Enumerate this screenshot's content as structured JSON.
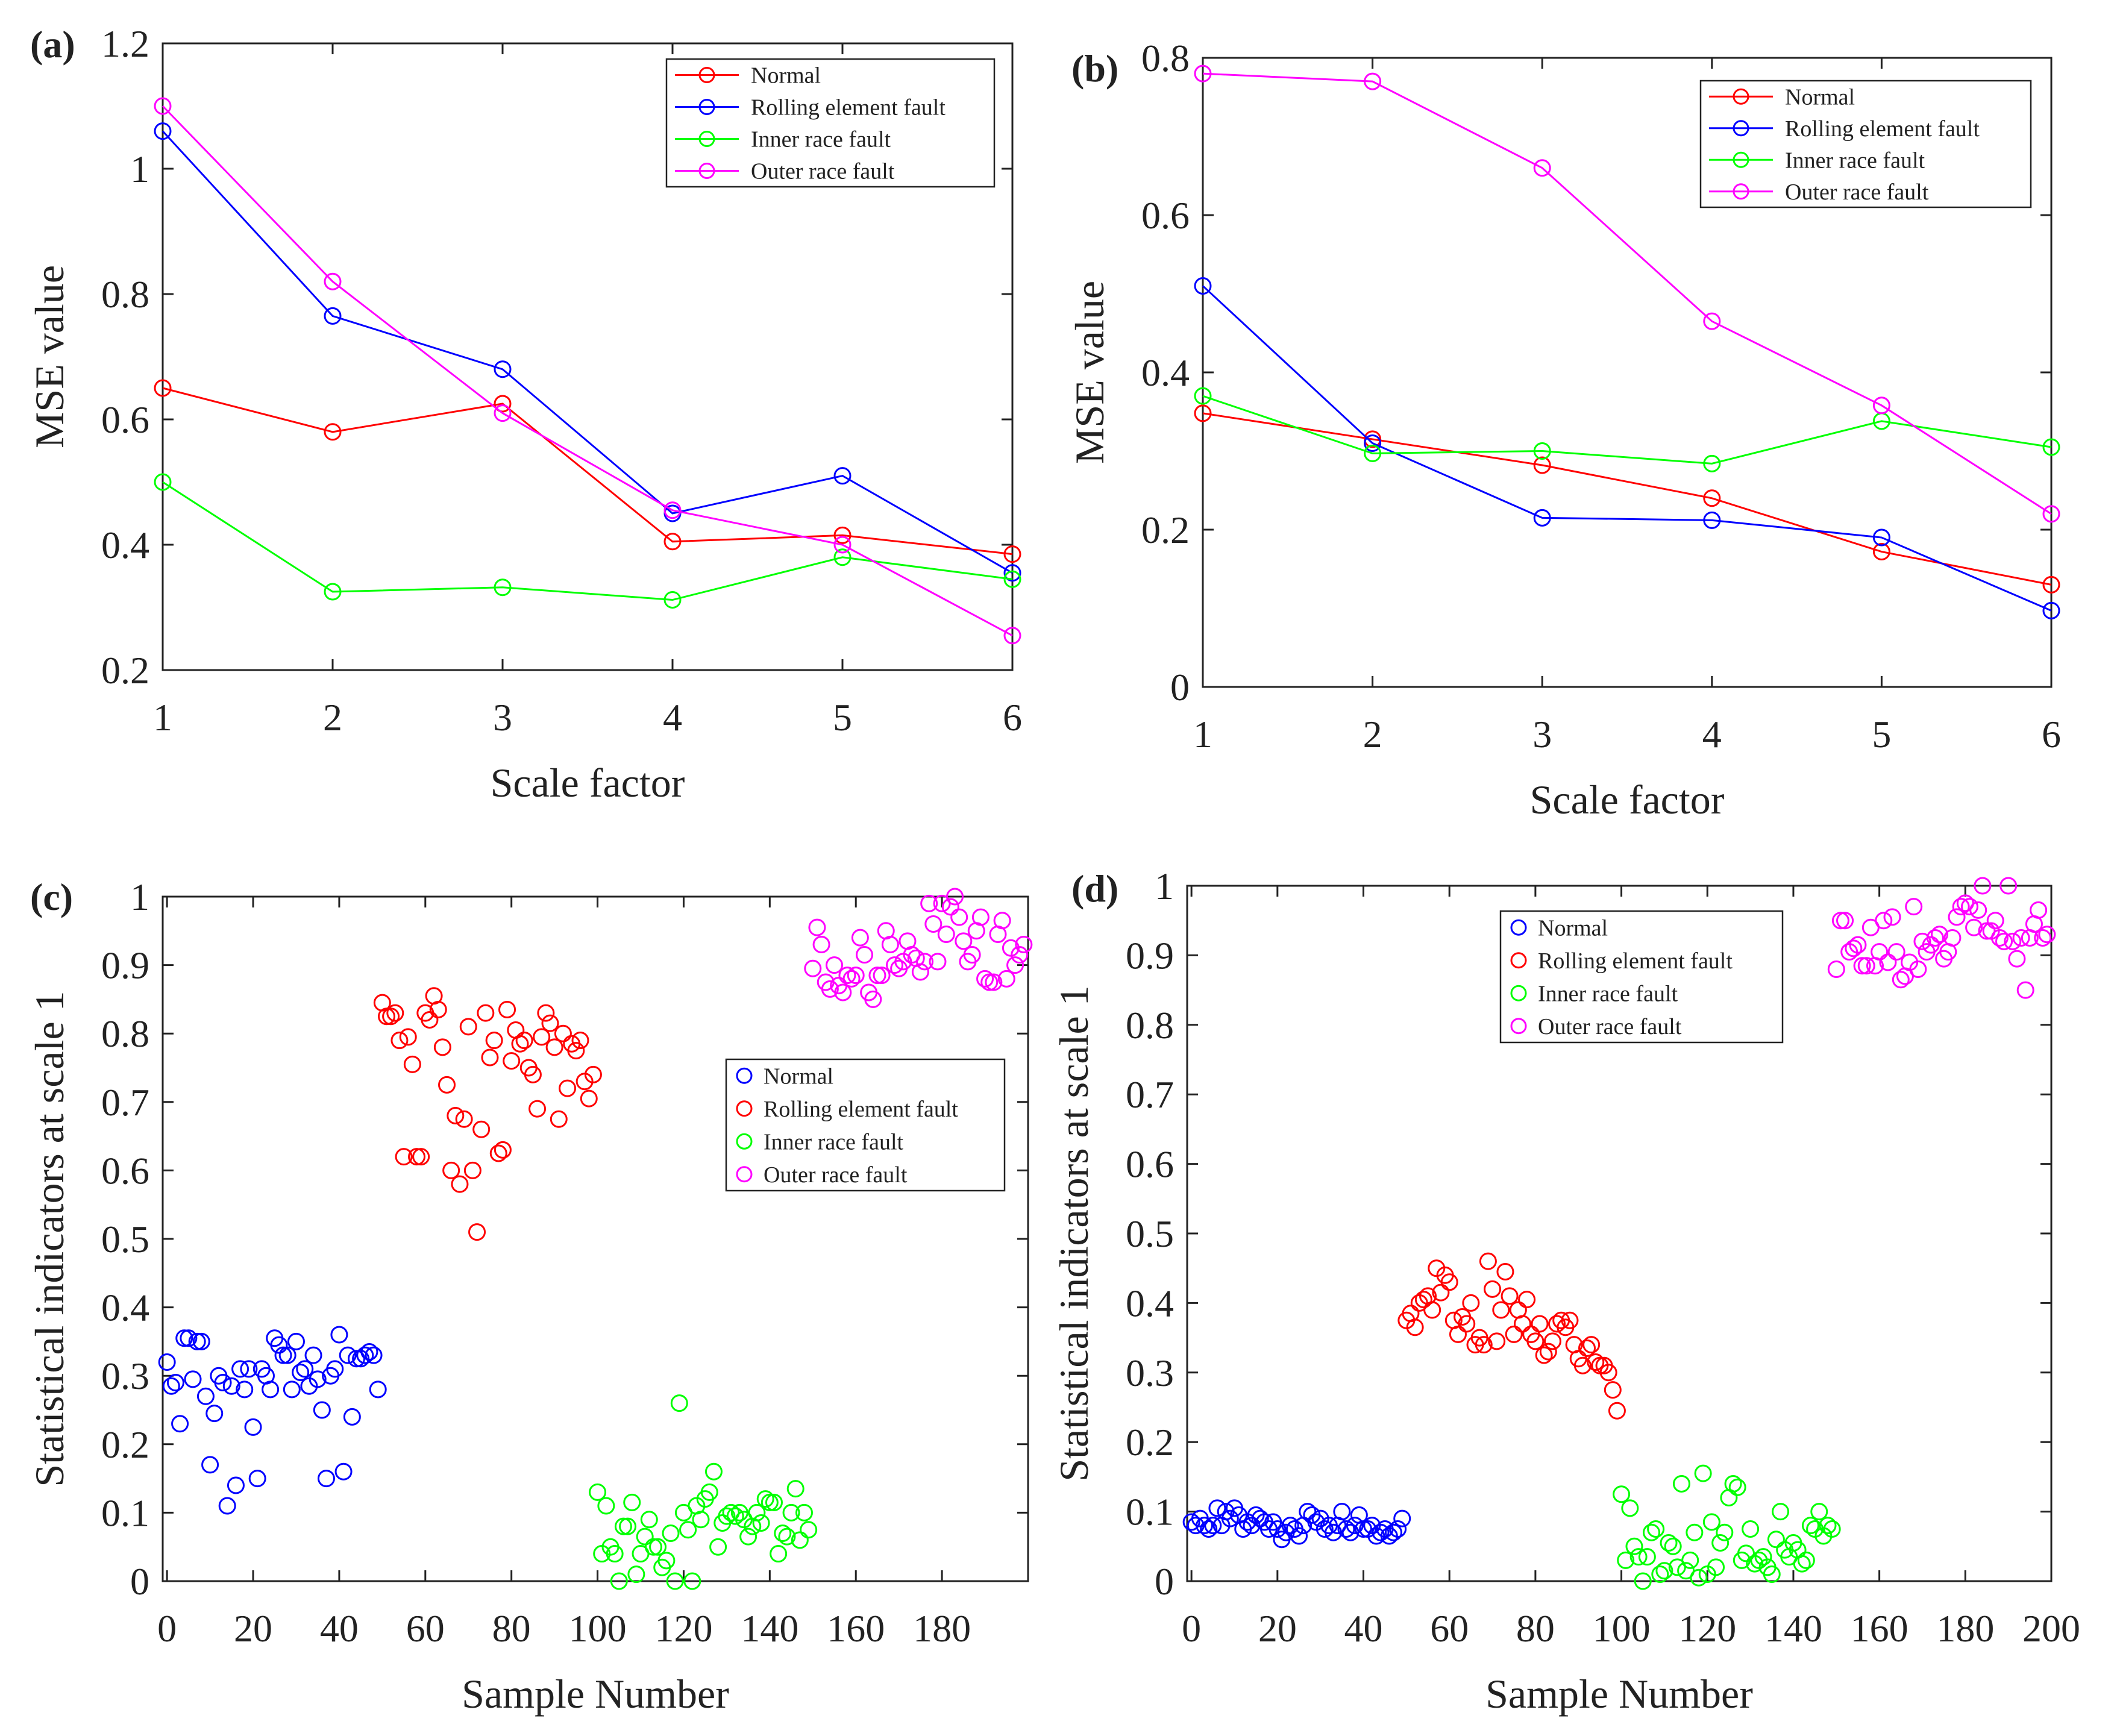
{
  "chart_data": [
    {
      "id": "a",
      "panel_label": "(a)",
      "type": "line",
      "xlabel": "Scale factor",
      "ylabel": "MSE value",
      "xlim": [
        1,
        6
      ],
      "ylim": [
        0.2,
        1.2
      ],
      "xticks": [
        1,
        2,
        3,
        4,
        5,
        6
      ],
      "yticks": [
        0.2,
        0.4,
        0.6,
        0.8,
        1,
        1.2
      ],
      "legend_position": "top-right",
      "x": [
        1,
        2,
        3,
        4,
        5,
        6
      ],
      "series": [
        {
          "name": "Normal",
          "color": "#ff0000",
          "values": [
            0.65,
            0.58,
            0.625,
            0.405,
            0.415,
            0.385
          ]
        },
        {
          "name": "Rolling element fault",
          "color": "#0000ff",
          "values": [
            1.06,
            0.765,
            0.68,
            0.45,
            0.51,
            0.355
          ]
        },
        {
          "name": "Inner race fault",
          "color": "#00ff00",
          "values": [
            0.5,
            0.325,
            0.332,
            0.312,
            0.38,
            0.345
          ]
        },
        {
          "name": "Outer race fault",
          "color": "#ff00ff",
          "values": [
            1.1,
            0.82,
            0.61,
            0.455,
            0.4,
            0.255
          ]
        }
      ]
    },
    {
      "id": "b",
      "panel_label": "(b)",
      "type": "line",
      "xlabel": "Scale factor",
      "ylabel": "MSE value",
      "xlim": [
        1,
        6
      ],
      "ylim": [
        0,
        0.8
      ],
      "xticks": [
        1,
        2,
        3,
        4,
        5,
        6
      ],
      "yticks": [
        0,
        0.2,
        0.4,
        0.6,
        0.8
      ],
      "legend_position": "top-right",
      "x": [
        1,
        2,
        3,
        4,
        5,
        6
      ],
      "series": [
        {
          "name": "Normal",
          "color": "#ff0000",
          "values": [
            0.348,
            0.315,
            0.282,
            0.24,
            0.172,
            0.13
          ]
        },
        {
          "name": "Rolling element fault",
          "color": "#0000ff",
          "values": [
            0.51,
            0.31,
            0.215,
            0.212,
            0.19,
            0.097
          ]
        },
        {
          "name": "Inner race fault",
          "color": "#00ff00",
          "values": [
            0.37,
            0.297,
            0.3,
            0.284,
            0.338,
            0.305
          ]
        },
        {
          "name": "Outer race fault",
          "color": "#ff00ff",
          "values": [
            0.78,
            0.77,
            0.66,
            0.465,
            0.358,
            0.22
          ]
        }
      ]
    },
    {
      "id": "c",
      "panel_label": "(c)",
      "type": "scatter",
      "xlabel": "Sample Number",
      "ylabel": "Statistical indicators at scale 1",
      "xlim": [
        -1,
        200
      ],
      "ylim": [
        0,
        1
      ],
      "xticks": [
        0,
        20,
        40,
        60,
        80,
        100,
        120,
        140,
        160,
        180
      ],
      "yticks": [
        0,
        0.1,
        0.2,
        0.3,
        0.4,
        0.5,
        0.6,
        0.7,
        0.8,
        0.9,
        1
      ],
      "legend_position": "center-right",
      "series": [
        {
          "name": "Normal",
          "color": "#0000ff",
          "x_start": 0,
          "values": [
            0.32,
            0.285,
            0.29,
            0.23,
            0.355,
            0.355,
            0.295,
            0.35,
            0.35,
            0.27,
            0.17,
            0.245,
            0.3,
            0.29,
            0.11,
            0.285,
            0.14,
            0.31,
            0.28,
            0.31,
            0.225,
            0.15,
            0.31,
            0.3,
            0.28,
            0.355,
            0.345,
            0.33,
            0.33,
            0.28,
            0.35,
            0.305,
            0.31,
            0.285,
            0.33,
            0.295,
            0.25,
            0.15,
            0.3,
            0.31,
            0.36,
            0.16,
            0.33,
            0.24,
            0.325,
            0.325,
            0.33,
            0.335,
            0.33,
            0.28
          ]
        },
        {
          "name": "Rolling element fault",
          "color": "#ff0000",
          "x_start": 50,
          "values": [
            0.845,
            0.825,
            0.825,
            0.83,
            0.79,
            0.62,
            0.795,
            0.755,
            0.62,
            0.62,
            0.83,
            0.82,
            0.855,
            0.835,
            0.78,
            0.725,
            0.6,
            0.68,
            0.58,
            0.675,
            0.81,
            0.6,
            0.51,
            0.66,
            0.83,
            0.765,
            0.79,
            0.625,
            0.63,
            0.835,
            0.76,
            0.805,
            0.785,
            0.79,
            0.75,
            0.74,
            0.69,
            0.795,
            0.83,
            0.815,
            0.78,
            0.675,
            0.8,
            0.72,
            0.785,
            0.775,
            0.79,
            0.73,
            0.705,
            0.74
          ]
        },
        {
          "name": "Inner race fault",
          "color": "#00ff00",
          "x_start": 100,
          "values": [
            0.13,
            0.04,
            0.11,
            0.05,
            0.04,
            0.0,
            0.08,
            0.08,
            0.115,
            0.01,
            0.04,
            0.065,
            0.09,
            0.05,
            0.05,
            0.02,
            0.03,
            0.07,
            0.0,
            0.26,
            0.1,
            0.075,
            0.0,
            0.11,
            0.09,
            0.12,
            0.13,
            0.16,
            0.05,
            0.085,
            0.095,
            0.1,
            0.095,
            0.1,
            0.09,
            0.065,
            0.08,
            0.1,
            0.085,
            0.12,
            0.115,
            0.115,
            0.04,
            0.07,
            0.065,
            0.1,
            0.135,
            0.06,
            0.1,
            0.075
          ]
        },
        {
          "name": "Outer race fault",
          "color": "#ff00ff",
          "x_start": 150,
          "values": [
            0.895,
            0.955,
            0.93,
            0.875,
            0.865,
            0.9,
            0.87,
            0.86,
            0.885,
            0.88,
            0.885,
            0.94,
            0.915,
            0.86,
            0.85,
            0.885,
            0.885,
            0.95,
            0.93,
            0.9,
            0.895,
            0.905,
            0.935,
            0.915,
            0.91,
            0.89,
            0.905,
            0.99,
            0.96,
            0.905,
            0.99,
            0.945,
            0.985,
            1.0,
            0.97,
            0.935,
            0.905,
            0.915,
            0.95,
            0.97,
            0.88,
            0.875,
            0.875,
            0.945,
            0.965,
            0.88,
            0.925,
            0.9,
            0.915,
            0.93
          ]
        }
      ]
    },
    {
      "id": "d",
      "panel_label": "(d)",
      "type": "scatter",
      "xlabel": "Sample Number",
      "ylabel": "Statistical indicators at scale 1",
      "xlim": [
        -1,
        200
      ],
      "ylim": [
        0,
        1
      ],
      "xticks": [
        0,
        20,
        40,
        60,
        80,
        100,
        120,
        140,
        160,
        180,
        200
      ],
      "yticks": [
        0,
        0.1,
        0.2,
        0.3,
        0.4,
        0.5,
        0.6,
        0.7,
        0.8,
        0.9,
        1
      ],
      "legend_position": "top-center",
      "series": [
        {
          "name": "Normal",
          "color": "#0000ff",
          "x_start": 0,
          "values": [
            0.085,
            0.08,
            0.09,
            0.08,
            0.075,
            0.08,
            0.105,
            0.08,
            0.1,
            0.09,
            0.105,
            0.095,
            0.075,
            0.085,
            0.08,
            0.095,
            0.09,
            0.085,
            0.075,
            0.085,
            0.075,
            0.06,
            0.07,
            0.08,
            0.075,
            0.065,
            0.08,
            0.1,
            0.095,
            0.085,
            0.09,
            0.075,
            0.08,
            0.07,
            0.08,
            0.1,
            0.075,
            0.07,
            0.08,
            0.095,
            0.075,
            0.075,
            0.08,
            0.065,
            0.07,
            0.075,
            0.065,
            0.07,
            0.075,
            0.09
          ]
        },
        {
          "name": "Rolling element fault",
          "color": "#ff0000",
          "x_start": 50,
          "values": [
            0.375,
            0.385,
            0.365,
            0.4,
            0.405,
            0.41,
            0.39,
            0.45,
            0.415,
            0.44,
            0.43,
            0.375,
            0.355,
            0.38,
            0.37,
            0.4,
            0.34,
            0.35,
            0.34,
            0.46,
            0.42,
            0.345,
            0.39,
            0.445,
            0.41,
            0.355,
            0.39,
            0.37,
            0.405,
            0.355,
            0.345,
            0.37,
            0.325,
            0.33,
            0.345,
            0.37,
            0.375,
            0.365,
            0.375,
            0.34,
            0.32,
            0.31,
            0.335,
            0.34,
            0.315,
            0.31,
            0.31,
            0.3,
            0.275,
            0.245
          ]
        },
        {
          "name": "Inner race fault",
          "color": "#00ff00",
          "x_start": 100,
          "values": [
            0.125,
            0.03,
            0.105,
            0.05,
            0.035,
            0.0,
            0.035,
            0.07,
            0.075,
            0.01,
            0.015,
            0.055,
            0.05,
            0.02,
            0.14,
            0.015,
            0.03,
            0.07,
            0.005,
            0.155,
            0.01,
            0.085,
            0.02,
            0.055,
            0.07,
            0.12,
            0.14,
            0.135,
            0.03,
            0.04,
            0.075,
            0.025,
            0.03,
            0.035,
            0.02,
            0.01,
            0.06,
            0.1,
            0.045,
            0.035,
            0.055,
            0.045,
            0.025,
            0.03,
            0.08,
            0.075,
            0.1,
            0.065,
            0.08,
            0.075
          ]
        },
        {
          "name": "Outer race fault",
          "color": "#ff00ff",
          "x_start": 150,
          "values": [
            0.88,
            0.95,
            0.95,
            0.905,
            0.91,
            0.915,
            0.885,
            0.885,
            0.94,
            0.885,
            0.905,
            0.95,
            0.89,
            0.955,
            0.905,
            0.865,
            0.87,
            0.89,
            0.97,
            0.88,
            0.92,
            0.905,
            0.915,
            0.925,
            0.93,
            0.895,
            0.905,
            0.925,
            0.955,
            0.97,
            0.975,
            0.97,
            0.94,
            0.965,
            1.0,
            0.935,
            0.935,
            0.95,
            0.925,
            0.92,
            1.0,
            0.92,
            0.895,
            0.925,
            0.85,
            0.925,
            0.945,
            0.965,
            0.925,
            0.93
          ]
        }
      ]
    }
  ]
}
